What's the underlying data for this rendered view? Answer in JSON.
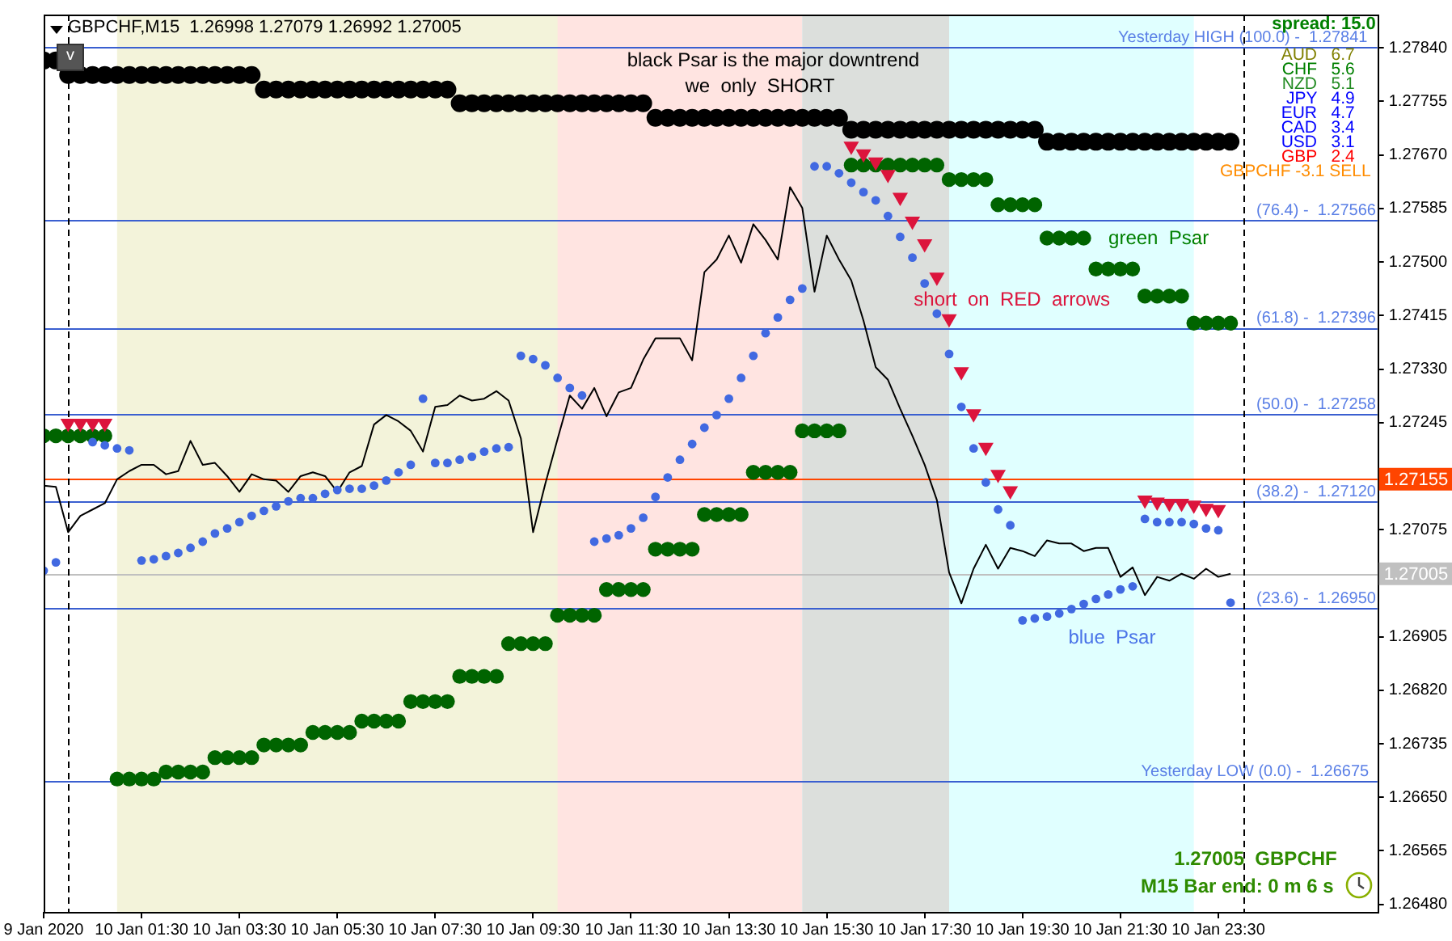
{
  "chart_data": {
    "type": "line",
    "title": "GBPCHF,M15  1.26998 1.27079 1.26992 1.27005",
    "xlim": [
      "2020-01-09T23:30",
      "2020-01-11T02:45"
    ],
    "xticks": [
      {
        "value": "2020-01-09T23:30",
        "label": "9 Jan 2020"
      },
      {
        "value": "2020-01-10T01:30",
        "label": "10 Jan 01:30"
      },
      {
        "value": "2020-01-10T03:30",
        "label": "10 Jan 03:30"
      },
      {
        "value": "2020-01-10T05:30",
        "label": "10 Jan 05:30"
      },
      {
        "value": "2020-01-10T07:30",
        "label": "10 Jan 07:30"
      },
      {
        "value": "2020-01-10T09:30",
        "label": "10 Jan 09:30"
      },
      {
        "value": "2020-01-10T11:30",
        "label": "10 Jan 11:30"
      },
      {
        "value": "2020-01-10T13:30",
        "label": "10 Jan 13:30"
      },
      {
        "value": "2020-01-10T15:30",
        "label": "10 Jan 15:30"
      },
      {
        "value": "2020-01-10T17:30",
        "label": "10 Jan 17:30"
      },
      {
        "value": "2020-01-10T19:30",
        "label": "10 Jan 19:30"
      },
      {
        "value": "2020-01-10T21:30",
        "label": "10 Jan 21:30"
      },
      {
        "value": "2020-01-10T23:30",
        "label": "10 Jan 23:30"
      }
    ],
    "ylim": [
      1.26468,
      1.27893
    ],
    "yticks": [
      {
        "value": 1.2784,
        "label": "1.27840"
      },
      {
        "value": 1.27755,
        "label": "1.27755"
      },
      {
        "value": 1.2767,
        "label": "1.27670"
      },
      {
        "value": 1.27585,
        "label": "1.27585"
      },
      {
        "value": 1.275,
        "label": "1.27500"
      },
      {
        "value": 1.27415,
        "label": "1.27415"
      },
      {
        "value": 1.2733,
        "label": "1.27330"
      },
      {
        "value": 1.27245,
        "label": "1.27245"
      },
      {
        "value": 1.27075,
        "label": "1.27075"
      },
      {
        "value": 1.26905,
        "label": "1.26905"
      },
      {
        "value": 1.2682,
        "label": "1.26820"
      },
      {
        "value": 1.26735,
        "label": "1.26735"
      },
      {
        "value": 1.2665,
        "label": "1.26650"
      },
      {
        "value": 1.26565,
        "label": "1.26565"
      },
      {
        "value": 1.2648,
        "label": "1.26480"
      }
    ],
    "grid": false,
    "legend": false,
    "x": [
      "2020-01-09T23:30",
      "2020-01-09T23:45",
      "2020-01-10T00:00",
      "2020-01-10T00:15",
      "2020-01-10T00:30",
      "2020-01-10T00:45",
      "2020-01-10T01:00",
      "2020-01-10T01:15",
      "2020-01-10T01:30",
      "2020-01-10T01:45",
      "2020-01-10T02:00",
      "2020-01-10T02:15",
      "2020-01-10T02:30",
      "2020-01-10T02:45",
      "2020-01-10T03:00",
      "2020-01-10T03:15",
      "2020-01-10T03:30",
      "2020-01-10T03:45",
      "2020-01-10T04:00",
      "2020-01-10T04:15",
      "2020-01-10T04:30",
      "2020-01-10T04:45",
      "2020-01-10T05:00",
      "2020-01-10T05:15",
      "2020-01-10T05:30",
      "2020-01-10T05:45",
      "2020-01-10T06:00",
      "2020-01-10T06:15",
      "2020-01-10T06:30",
      "2020-01-10T06:45",
      "2020-01-10T07:00",
      "2020-01-10T07:15",
      "2020-01-10T07:30",
      "2020-01-10T07:45",
      "2020-01-10T08:00",
      "2020-01-10T08:15",
      "2020-01-10T08:30",
      "2020-01-10T08:45",
      "2020-01-10T09:00",
      "2020-01-10T09:15",
      "2020-01-10T09:30",
      "2020-01-10T09:45",
      "2020-01-10T10:00",
      "2020-01-10T10:15",
      "2020-01-10T10:30",
      "2020-01-10T10:45",
      "2020-01-10T11:00",
      "2020-01-10T11:15",
      "2020-01-10T11:30",
      "2020-01-10T11:45",
      "2020-01-10T12:00",
      "2020-01-10T12:15",
      "2020-01-10T12:30",
      "2020-01-10T12:45",
      "2020-01-10T13:00",
      "2020-01-10T13:15",
      "2020-01-10T13:30",
      "2020-01-10T13:45",
      "2020-01-10T14:00",
      "2020-01-10T14:15",
      "2020-01-10T14:30",
      "2020-01-10T14:45",
      "2020-01-10T15:00",
      "2020-01-10T15:15",
      "2020-01-10T15:30",
      "2020-01-10T15:45",
      "2020-01-10T16:00",
      "2020-01-10T16:15",
      "2020-01-10T16:30",
      "2020-01-10T16:45",
      "2020-01-10T17:00",
      "2020-01-10T17:15",
      "2020-01-10T17:30",
      "2020-01-10T17:45",
      "2020-01-10T18:00",
      "2020-01-10T18:15",
      "2020-01-10T18:30",
      "2020-01-10T18:45",
      "2020-01-10T19:00",
      "2020-01-10T19:15",
      "2020-01-10T19:30",
      "2020-01-10T19:45",
      "2020-01-10T20:00",
      "2020-01-10T20:15",
      "2020-01-10T20:30",
      "2020-01-10T20:45",
      "2020-01-10T21:00",
      "2020-01-10T21:15",
      "2020-01-10T21:30",
      "2020-01-10T21:45",
      "2020-01-10T22:00",
      "2020-01-10T22:15",
      "2020-01-10T22:30",
      "2020-01-10T22:45",
      "2020-01-10T23:00",
      "2020-01-10T23:15",
      "2020-01-10T23:30",
      "2020-01-10T23:45"
    ],
    "series": [
      {
        "color": "#000000",
        "marker": "none",
        "line_style": "solid",
        "values": [
          1.27145,
          1.27143,
          1.27071,
          1.27097,
          1.27107,
          1.27117,
          1.27155,
          1.27168,
          1.27178,
          1.27178,
          1.27163,
          1.27168,
          1.27216,
          1.27178,
          1.27181,
          1.2716,
          1.27135,
          1.27163,
          1.27155,
          1.27153,
          1.27135,
          1.2716,
          1.27166,
          1.2716,
          1.27135,
          1.27166,
          1.27176,
          1.27242,
          1.27257,
          1.27247,
          1.27232,
          1.27199,
          1.2727,
          1.27273,
          1.27288,
          1.2728,
          1.27283,
          1.27295,
          1.2728,
          1.2722,
          1.27071,
          1.27148,
          1.27219,
          1.27288,
          1.27267,
          1.273,
          1.27255,
          1.27293,
          1.273,
          1.27345,
          1.27379,
          1.27379,
          1.27379,
          1.27344,
          1.27484,
          1.27504,
          1.27542,
          1.27499,
          1.2756,
          1.27535,
          1.27504,
          1.27619,
          1.27586,
          1.27453,
          1.27542,
          1.27504,
          1.27471,
          1.27407,
          1.27333,
          1.27313,
          1.27267,
          1.27224,
          1.27178,
          1.27122,
          1.27007,
          1.26958,
          1.27013,
          1.27051,
          1.27013,
          1.27046,
          1.27041,
          1.27033,
          1.27058,
          1.27053,
          1.27053,
          1.27041,
          1.27046,
          1.27046,
          1.27,
          1.27015,
          1.26971,
          1.27,
          1.26994,
          1.27005,
          1.26997,
          1.27013,
          1.27,
          1.27005
        ]
      },
      {
        "type": "scatter",
        "color": "#000000",
        "marker": "circle",
        "values": [
          1.2782,
          1.2782,
          1.27797,
          1.27797,
          1.27797,
          1.27797,
          1.27797,
          1.27797,
          1.27797,
          1.27797,
          1.27797,
          1.27797,
          1.27797,
          1.27797,
          1.27797,
          1.27797,
          1.27797,
          1.27797,
          1.27774,
          1.27774,
          1.27774,
          1.27774,
          1.27774,
          1.27774,
          1.27774,
          1.27774,
          1.27774,
          1.27774,
          1.27774,
          1.27774,
          1.27774,
          1.27774,
          1.27774,
          1.27774,
          1.27752,
          1.27752,
          1.27752,
          1.27752,
          1.27752,
          1.27752,
          1.27752,
          1.27752,
          1.27752,
          1.27752,
          1.27752,
          1.27752,
          1.27752,
          1.27752,
          1.27752,
          1.27752,
          1.27729,
          1.27729,
          1.27729,
          1.27729,
          1.27729,
          1.27729,
          1.27729,
          1.27729,
          1.27729,
          1.27729,
          1.27729,
          1.27729,
          1.27729,
          1.27729,
          1.27729,
          1.27729,
          1.2771,
          1.2771,
          1.2771,
          1.2771,
          1.2771,
          1.2771,
          1.2771,
          1.2771,
          1.2771,
          1.2771,
          1.2771,
          1.2771,
          1.2771,
          1.2771,
          1.2771,
          1.2771,
          1.27691,
          1.27691,
          1.27691,
          1.27691,
          1.27691,
          1.27691,
          1.27691,
          1.27691,
          1.27691,
          1.27691,
          1.27691,
          1.27691,
          1.27691,
          1.27691,
          1.27691,
          1.27691
        ]
      },
      {
        "type": "scatter",
        "color": "#006400",
        "marker": "circle",
        "values": [
          1.27224,
          1.27224,
          1.27224,
          1.27224,
          1.27224,
          1.27224,
          1.26679,
          1.26679,
          1.26679,
          1.26679,
          1.2669,
          1.2669,
          1.2669,
          1.2669,
          1.26713,
          1.26713,
          1.26713,
          1.26713,
          1.26733,
          1.26733,
          1.26733,
          1.26733,
          1.26753,
          1.26753,
          1.26753,
          1.26753,
          1.26771,
          1.26771,
          1.26771,
          1.26771,
          1.26802,
          1.26802,
          1.26802,
          1.26802,
          1.26842,
          1.26842,
          1.26842,
          1.26842,
          1.26894,
          1.26894,
          1.26894,
          1.26894,
          1.26939,
          1.26939,
          1.26939,
          1.26939,
          1.2698,
          1.2698,
          1.2698,
          1.2698,
          1.27044,
          1.27044,
          1.27044,
          1.27044,
          1.27099,
          1.27099,
          1.27099,
          1.27099,
          1.27166,
          1.27166,
          1.27166,
          1.27166,
          1.27232,
          1.27232,
          1.27232,
          1.27232,
          1.27654,
          1.27654,
          1.27654,
          1.27654,
          1.27654,
          1.27654,
          1.27654,
          1.27654,
          1.27631,
          1.27631,
          1.27631,
          1.27631,
          1.27591,
          1.27591,
          1.27591,
          1.27591,
          1.27538,
          1.27538,
          1.27538,
          1.27538,
          1.27489,
          1.27489,
          1.27489,
          1.27489,
          1.27446,
          1.27446,
          1.27446,
          1.27446,
          1.27403,
          1.27403,
          1.27403,
          1.27403
        ]
      },
      {
        "type": "scatter",
        "color": "#4169e1",
        "marker": "circle",
        "values": [
          1.2701,
          1.27023,
          null,
          null,
          1.27214,
          1.27209,
          1.27204,
          1.27201,
          1.27026,
          1.27028,
          1.27033,
          1.27038,
          1.27046,
          1.27056,
          1.27069,
          1.27077,
          1.27087,
          1.27097,
          1.27105,
          1.27112,
          1.2712,
          1.27125,
          1.27125,
          1.27132,
          1.27138,
          1.2714,
          1.2714,
          1.27145,
          1.27153,
          1.27166,
          1.27178,
          1.27283,
          1.27181,
          1.27181,
          1.27186,
          1.27191,
          1.27199,
          1.27204,
          1.27206,
          1.27351,
          1.27346,
          1.27336,
          1.27316,
          1.273,
          1.27288,
          1.27056,
          1.27061,
          1.27066,
          1.27077,
          1.27094,
          1.27127,
          1.27158,
          1.27186,
          1.27211,
          1.27237,
          1.27257,
          1.27283,
          1.27316,
          1.27351,
          1.27387,
          1.27412,
          1.2744,
          1.27458,
          1.27652,
          1.27652,
          1.27641,
          1.27626,
          1.27611,
          1.27598,
          1.27573,
          1.2754,
          1.27507,
          1.27466,
          1.27418,
          1.27354,
          1.2727,
          1.27204,
          1.2715,
          1.27107,
          1.27082,
          1.26931,
          1.26934,
          1.26937,
          1.26942,
          1.26949,
          1.26957,
          1.26965,
          1.26972,
          1.2698,
          1.26985,
          1.27092,
          1.27087,
          1.27087,
          1.27087,
          1.27084,
          1.27077,
          1.27074,
          1.26959
        ]
      },
      {
        "type": "scatter",
        "color": "#dc143c",
        "marker": "triangle",
        "x": [
          "2020-01-10T00:00",
          "2020-01-10T00:15",
          "2020-01-10T00:30",
          "2020-01-10T00:45",
          "2020-01-10T16:00",
          "2020-01-10T16:15",
          "2020-01-10T16:30",
          "2020-01-10T16:45",
          "2020-01-10T17:00",
          "2020-01-10T17:15",
          "2020-01-10T17:30",
          "2020-01-10T17:45",
          "2020-01-10T18:00",
          "2020-01-10T18:15",
          "2020-01-10T18:30",
          "2020-01-10T18:45",
          "2020-01-10T19:00",
          "2020-01-10T19:15",
          "2020-01-10T22:00",
          "2020-01-10T22:15",
          "2020-01-10T22:30",
          "2020-01-10T22:45",
          "2020-01-10T23:00",
          "2020-01-10T23:15",
          "2020-01-10T23:30"
        ],
        "values": [
          1.27244,
          1.27244,
          1.27244,
          1.27244,
          1.27684,
          1.27672,
          1.27659,
          1.27639,
          1.27603,
          1.27565,
          1.27529,
          1.27476,
          1.2741,
          1.27326,
          1.27259,
          1.27206,
          1.27163,
          1.27137,
          1.27122,
          1.27119,
          1.27117,
          1.27117,
          1.27114,
          1.27109,
          1.27107
        ]
      }
    ],
    "bands": [
      {
        "axis": "x",
        "from": "2020-01-10T09:00",
        "to": "2020-01-10T18:00",
        "color": "#ffe4e1"
      },
      {
        "axis": "x",
        "from": "2020-01-10T15:00",
        "to": "2020-01-10T23:00",
        "color": "#e0ffff"
      },
      {
        "axis": "x",
        "from": "2020-01-10T15:00",
        "to": "2020-01-10T18:00",
        "color": "#dcdfdc"
      },
      {
        "axis": "x",
        "from": "2020-01-10T01:00",
        "to": "2020-01-10T10:00",
        "color": "#f3f3da"
      }
    ],
    "ref_lines": [
      {
        "axis": "y",
        "value": 1.27841,
        "color": "#3a5fd0"
      },
      {
        "axis": "y",
        "value": 1.27566,
        "color": "#3a5fd0"
      },
      {
        "axis": "y",
        "value": 1.27396,
        "color": "#3a5fd0"
      },
      {
        "axis": "y",
        "value": 1.27258,
        "color": "#3a5fd0"
      },
      {
        "axis": "y",
        "value": 1.2712,
        "color": "#3a5fd0"
      },
      {
        "axis": "y",
        "value": 1.2695,
        "color": "#3a5fd0"
      },
      {
        "axis": "y",
        "value": 1.26675,
        "color": "#3a5fd0"
      },
      {
        "axis": "y",
        "value": 1.27155,
        "label": "1.27155",
        "color": "#ff4500"
      },
      {
        "axis": "y",
        "value": 1.27005,
        "label": "1.27005",
        "color": "#c0c0c0"
      },
      {
        "axis": "x",
        "value": "2020-01-10T00:00",
        "color": "#000000",
        "line_style": "dashed"
      },
      {
        "axis": "x",
        "value": "2020-01-11T00:00",
        "color": "#000000",
        "line_style": "dashed"
      }
    ],
    "annotations": [
      {
        "text": "Yesterday HIGH (100.0) -  1.27841",
        "x": "2020-01-11T00:00",
        "y": 1.27841
      },
      {
        "text": "(76.4) -  1.27566",
        "x": "2020-01-11T01:30",
        "y": 1.27566
      },
      {
        "text": "(61.8) -  1.27396",
        "x": "2020-01-11T01:30",
        "y": 1.27396
      },
      {
        "text": "(50.0) -  1.27258",
        "x": "2020-01-11T01:30",
        "y": 1.27258
      },
      {
        "text": "(38.2) -  1.27120",
        "x": "2020-01-11T01:30",
        "y": 1.2712
      },
      {
        "text": "(23.6) -  1.26950",
        "x": "2020-01-11T01:30",
        "y": 1.2695
      },
      {
        "text": "Yesterday LOW (0.0) -  1.26675",
        "x": "2020-01-11T00:15",
        "y": 1.26675
      },
      "black Psar is the major downtrend",
      "we  only  SHORT",
      "green  Psar",
      "short  on  RED  arrows",
      "blue  Psar",
      "spread: 15.0",
      "AUD   6.7",
      "CHF   5.6",
      "NZD   5.1",
      "JPY   4.9",
      "EUR   4.7",
      "CAD   3.4",
      "USD   3.1",
      "GBP   2.4",
      "GBPCHF -3.1 SELL",
      "1.27005  GBPCHF",
      "M15 Bar end: 0 m 6 s",
      "v"
    ]
  }
}
